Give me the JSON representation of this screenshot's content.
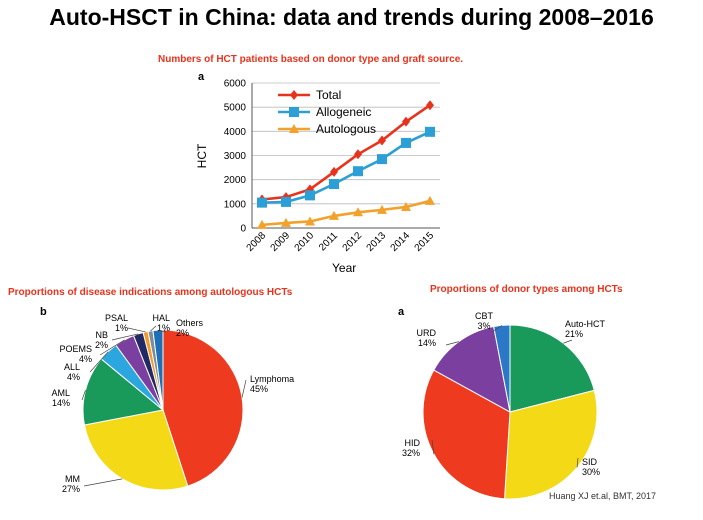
{
  "title": "Auto-HSCT in China: data and trends during 2008–2016",
  "credit": "Huang XJ et.al, BMT, 2017",
  "chart_data": [
    {
      "type": "line",
      "subtitle": "Numbers of HCT patients based on donor type and graft source.",
      "panel": "a",
      "xlabel": "Year",
      "ylabel": "HCT",
      "ylim": [
        0,
        6000
      ],
      "yticks": [
        "0",
        "1000",
        "2000",
        "3000",
        "4000",
        "5000",
        "6000"
      ],
      "categories": [
        "2008",
        "2009",
        "2010",
        "2011",
        "2012",
        "2013",
        "2014",
        "2015"
      ],
      "series": [
        {
          "name": "Total",
          "color": "#e8331c",
          "marker": "diamond",
          "values": [
            1180,
            1280,
            1600,
            2320,
            3050,
            3620,
            4400,
            5080
          ]
        },
        {
          "name": "Allogeneic",
          "color": "#2b9fd6",
          "marker": "square",
          "values": [
            1050,
            1080,
            1350,
            1820,
            2350,
            2850,
            3520,
            3980
          ]
        },
        {
          "name": "Autologous",
          "color": "#f2a12b",
          "marker": "triangle",
          "values": [
            130,
            210,
            270,
            500,
            650,
            750,
            870,
            1120
          ]
        }
      ]
    },
    {
      "type": "pie",
      "subtitle": "Proportions of disease indications among autologous HCTs",
      "panel": "b",
      "slices": [
        {
          "label": "Lymphoma",
          "pct": "45%",
          "value": 45,
          "color": "#ee3a1e"
        },
        {
          "label": "MM",
          "pct": "27%",
          "value": 27,
          "color": "#f4d916"
        },
        {
          "label": "AML",
          "pct": "14%",
          "value": 14,
          "color": "#1a9a5a"
        },
        {
          "label": "ALL",
          "pct": "4%",
          "value": 4,
          "color": "#2ba6de"
        },
        {
          "label": "POEMS",
          "pct": "4%",
          "value": 4,
          "color": "#7b3fa0"
        },
        {
          "label": "NB",
          "pct": "2%",
          "value": 2,
          "color": "#222a66"
        },
        {
          "label": "PSAL",
          "pct": "1%",
          "value": 1,
          "color": "#f29a2a"
        },
        {
          "label": "HAL",
          "pct": "1%",
          "value": 1,
          "color": "#7d8b9a"
        },
        {
          "label": "Others",
          "pct": "2%",
          "value": 2,
          "color": "#1d6fb8"
        }
      ]
    },
    {
      "type": "pie",
      "subtitle": "Proportions of donor types among HCTs",
      "panel": "a",
      "slices": [
        {
          "label": "Auto-HCT",
          "pct": "21%",
          "value": 21,
          "color": "#1a9a5a"
        },
        {
          "label": "SID",
          "pct": "30%",
          "value": 30,
          "color": "#f4d916"
        },
        {
          "label": "HID",
          "pct": "32%",
          "value": 32,
          "color": "#ee3a1e"
        },
        {
          "label": "URD",
          "pct": "14%",
          "value": 14,
          "color": "#7b3fa0"
        },
        {
          "label": "CBT",
          "pct": "3%",
          "value": 3,
          "color": "#2b78c6"
        }
      ]
    }
  ]
}
